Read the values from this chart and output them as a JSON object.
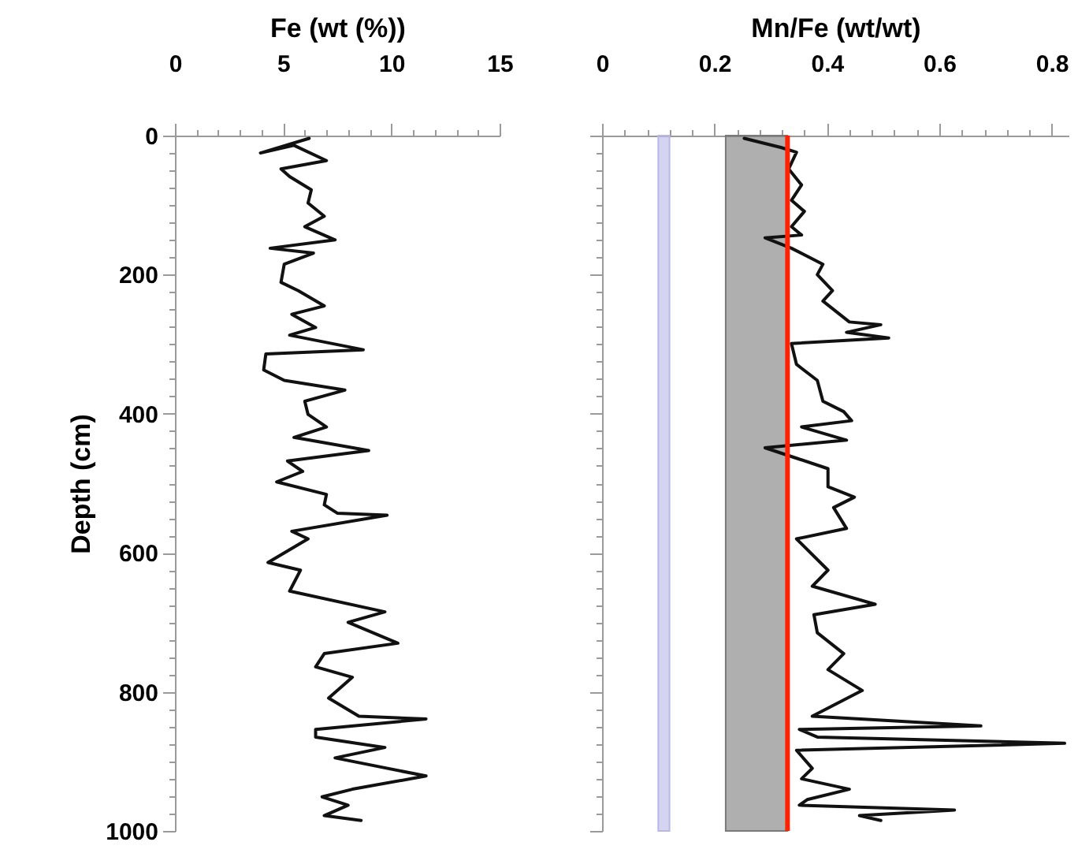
{
  "chart_data": [
    {
      "type": "line",
      "xlabel": "Fe (wt (%))",
      "ylabel": "Depth (cm)",
      "xlim": [
        0,
        15
      ],
      "ylim": [
        1000,
        0
      ],
      "xticks": [
        0,
        {
          "value": 1,
          "label": null
        },
        {
          "value": 2,
          "label": null
        },
        {
          "value": 3,
          "label": null
        },
        {
          "value": 4,
          "label": null
        },
        5,
        {
          "value": 6,
          "label": null
        },
        {
          "value": 7,
          "label": null
        },
        {
          "value": 8,
          "label": null
        },
        {
          "value": 9,
          "label": null
        },
        10,
        {
          "value": 11,
          "label": null
        },
        {
          "value": 12,
          "label": null
        },
        {
          "value": 13,
          "label": null
        },
        {
          "value": 14,
          "label": null
        },
        15
      ],
      "yticks": [
        0,
        {
          "value": 25,
          "label": null
        },
        {
          "value": 50,
          "label": null
        },
        {
          "value": 75,
          "label": null
        },
        {
          "value": 100,
          "label": null
        },
        {
          "value": 125,
          "label": null
        },
        {
          "value": 150,
          "label": null
        },
        {
          "value": 175,
          "label": null
        },
        200,
        {
          "value": 225,
          "label": null
        },
        {
          "value": 250,
          "label": null
        },
        {
          "value": 275,
          "label": null
        },
        {
          "value": 300,
          "label": null
        },
        {
          "value": 325,
          "label": null
        },
        {
          "value": 350,
          "label": null
        },
        {
          "value": 375,
          "label": null
        },
        400,
        {
          "value": 425,
          "label": null
        },
        {
          "value": 450,
          "label": null
        },
        {
          "value": 475,
          "label": null
        },
        {
          "value": 500,
          "label": null
        },
        {
          "value": 525,
          "label": null
        },
        {
          "value": 550,
          "label": null
        },
        {
          "value": 575,
          "label": null
        },
        600,
        {
          "value": 625,
          "label": null
        },
        {
          "value": 650,
          "label": null
        },
        {
          "value": 675,
          "label": null
        },
        {
          "value": 700,
          "label": null
        },
        {
          "value": 725,
          "label": null
        },
        {
          "value": 750,
          "label": null
        },
        {
          "value": 775,
          "label": null
        },
        800,
        {
          "value": 825,
          "label": null
        },
        {
          "value": 850,
          "label": null
        },
        {
          "value": 875,
          "label": null
        },
        {
          "value": 900,
          "label": null
        },
        {
          "value": 925,
          "label": null
        },
        {
          "value": 950,
          "label": null
        },
        {
          "value": 975,
          "label": null
        },
        1000
      ],
      "grid": false,
      "series": [
        {
          "color": "#111111",
          "x": [
            6.2,
            3.95,
            5.5,
            7.0,
            4.9,
            5.3,
            6.3,
            6.15,
            6.9,
            6.0,
            7.4,
            4.4,
            6.4,
            5.05,
            4.9,
            5.7,
            6.9,
            5.4,
            6.5,
            5.3,
            8.7,
            4.2,
            4.1,
            5.05,
            7.85,
            6.0,
            6.15,
            7.0,
            7.0,
            5.5,
            8.95,
            5.2,
            5.9,
            4.7,
            7.0,
            6.9,
            7.5,
            9.8,
            5.4,
            6.15,
            4.3,
            5.8,
            5.3,
            9.7,
            8.0,
            10.3,
            6.9,
            6.5,
            8.2,
            7.1,
            8.5,
            11.6,
            6.5,
            6.5,
            9.7,
            7.4,
            11.6,
            8.2,
            6.8,
            8.0,
            6.9,
            8.6
          ],
          "values": [
            4,
            25,
            14,
            36,
            48,
            59,
            78,
            97,
            116,
            131,
            150,
            162,
            169,
            185,
            211,
            223,
            245,
            257,
            276,
            287,
            308,
            314,
            337,
            352,
            366,
            382,
            401,
            419,
            419,
            434,
            453,
            468,
            483,
            498,
            516,
            531,
            543,
            546,
            569,
            580,
            614,
            625,
            655,
            685,
            700,
            730,
            745,
            764,
            779,
            809,
            835,
            839,
            854,
            865,
            880,
            895,
            921,
            940,
            951,
            963,
            978,
            985
          ]
        }
      ]
    },
    {
      "type": "line",
      "xlabel": "Mn/Fe (wt/wt)",
      "xlim": [
        0,
        0.83
      ],
      "ylim": [
        1000,
        0
      ],
      "tick_labels": "x",
      "xticks": [
        0,
        {
          "value": 0.04,
          "label": null
        },
        {
          "value": 0.08,
          "label": null
        },
        {
          "value": 0.12,
          "label": null
        },
        {
          "value": 0.16,
          "label": null
        },
        0.2,
        {
          "value": 0.24,
          "label": null
        },
        {
          "value": 0.28,
          "label": null
        },
        {
          "value": 0.32,
          "label": null
        },
        {
          "value": 0.36,
          "label": null
        },
        0.4,
        {
          "value": 0.44,
          "label": null
        },
        {
          "value": 0.48,
          "label": null
        },
        {
          "value": 0.52,
          "label": null
        },
        {
          "value": 0.56,
          "label": null
        },
        0.6,
        {
          "value": 0.64,
          "label": null
        },
        {
          "value": 0.68,
          "label": null
        },
        {
          "value": 0.72,
          "label": null
        },
        {
          "value": 0.76,
          "label": null
        },
        0.8
      ],
      "yticks": [
        0,
        {
          "value": 25,
          "label": null
        },
        {
          "value": 50,
          "label": null
        },
        {
          "value": 75,
          "label": null
        },
        {
          "value": 100,
          "label": null
        },
        {
          "value": 125,
          "label": null
        },
        {
          "value": 150,
          "label": null
        },
        {
          "value": 175,
          "label": null
        },
        200,
        {
          "value": 225,
          "label": null
        },
        {
          "value": 250,
          "label": null
        },
        {
          "value": 275,
          "label": null
        },
        {
          "value": 300,
          "label": null
        },
        {
          "value": 325,
          "label": null
        },
        {
          "value": 350,
          "label": null
        },
        {
          "value": 375,
          "label": null
        },
        400,
        {
          "value": 425,
          "label": null
        },
        {
          "value": 450,
          "label": null
        },
        {
          "value": 475,
          "label": null
        },
        {
          "value": 500,
          "label": null
        },
        {
          "value": 525,
          "label": null
        },
        {
          "value": 550,
          "label": null
        },
        {
          "value": 575,
          "label": null
        },
        600,
        {
          "value": 625,
          "label": null
        },
        {
          "value": 650,
          "label": null
        },
        {
          "value": 675,
          "label": null
        },
        {
          "value": 700,
          "label": null
        },
        {
          "value": 725,
          "label": null
        },
        {
          "value": 750,
          "label": null
        },
        {
          "value": 775,
          "label": null
        },
        800,
        {
          "value": 825,
          "label": null
        },
        {
          "value": 850,
          "label": null
        },
        {
          "value": 875,
          "label": null
        },
        {
          "value": 900,
          "label": null
        },
        {
          "value": 925,
          "label": null
        },
        {
          "value": 950,
          "label": null
        },
        {
          "value": 975,
          "label": null
        },
        1000
      ],
      "grid": false,
      "bands": [
        {
          "axis": "x",
          "from": 0.1,
          "to": 0.12,
          "color": "#b8b8e8"
        },
        {
          "axis": "x",
          "from": 0.22,
          "to": 0.33,
          "color": "#7a7a7a"
        }
      ],
      "ref_lines": [
        {
          "axis": "x",
          "value": 0.33,
          "color": "#ff2200"
        }
      ],
      "series": [
        {
          "color": "#111111",
          "x": [
            0.253,
            0.318,
            0.346,
            0.332,
            0.355,
            0.337,
            0.36,
            0.337,
            0.355,
            0.29,
            0.337,
            0.393,
            0.383,
            0.41,
            0.393,
            0.44,
            0.496,
            0.435,
            0.51,
            0.337,
            0.346,
            0.383,
            0.393,
            0.43,
            0.444,
            0.355,
            0.435,
            0.29,
            0.346,
            0.402,
            0.402,
            0.449,
            0.412,
            0.435,
            0.346,
            0.402,
            0.374,
            0.486,
            0.377,
            0.383,
            0.43,
            0.402,
            0.463,
            0.374,
            0.674,
            0.351,
            0.383,
            0.823,
            0.346,
            0.374,
            0.355,
            0.44,
            0.365,
            0.351,
            0.627,
            0.458,
            0.496
          ],
          "values": [
            4,
            17,
            24,
            48,
            71,
            93,
            109,
            131,
            143,
            147,
            162,
            185,
            200,
            223,
            238,
            268,
            272,
            283,
            291,
            299,
            329,
            352,
            382,
            397,
            410,
            419,
            438,
            449,
            464,
            479,
            505,
            520,
            535,
            565,
            580,
            625,
            648,
            674,
            689,
            715,
            745,
            768,
            798,
            835,
            849,
            854,
            865,
            874,
            884,
            910,
            925,
            940,
            955,
            963,
            970,
            978,
            985
          ]
        }
      ]
    }
  ]
}
